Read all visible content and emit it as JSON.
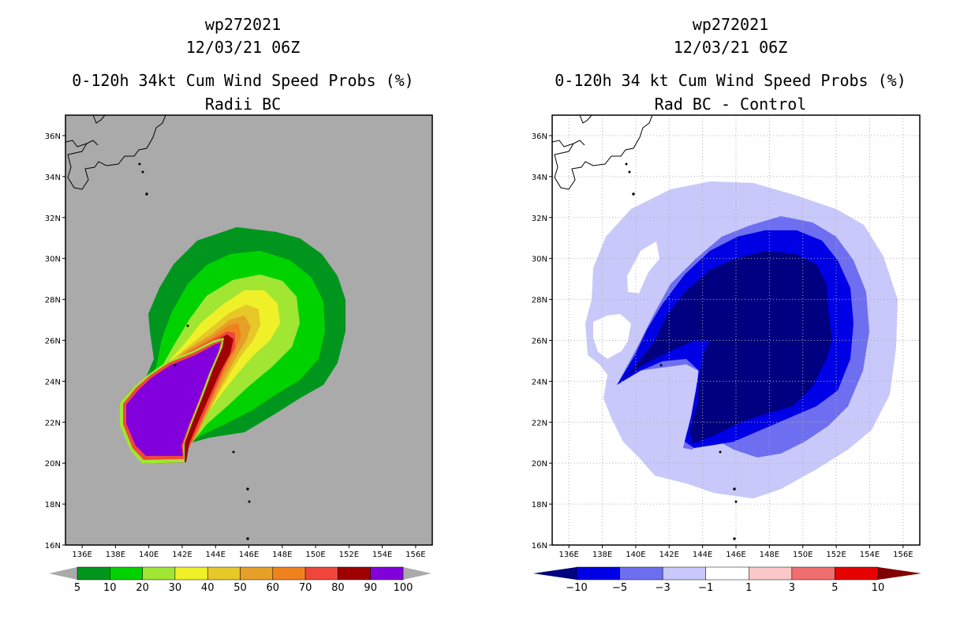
{
  "chart_data": [
    {
      "type": "filled-contour map",
      "title_lines": [
        "wp272021",
        "12/03/21 06Z",
        "0-120h 34kt Cum Wind Speed Probs (%)",
        "Radii BC"
      ],
      "x_ticks": [
        "136E",
        "138E",
        "140E",
        "142E",
        "144E",
        "146E",
        "148E",
        "150E",
        "152E",
        "154E",
        "156E"
      ],
      "y_ticks": [
        "16N",
        "18N",
        "20N",
        "22N",
        "24N",
        "26N",
        "28N",
        "30N",
        "32N",
        "34N",
        "36N"
      ],
      "xlim": [
        135,
        157
      ],
      "ylim": [
        16,
        37
      ],
      "colorbar_labels": [
        "5",
        "10",
        "20",
        "30",
        "40",
        "50",
        "60",
        "70",
        "80",
        "90",
        "100"
      ],
      "colorbar_colors": [
        "#00961e",
        "#00d200",
        "#a0e632",
        "#f0f028",
        "#e6c828",
        "#e6a028",
        "#f0821e",
        "#f0463c",
        "#a00000",
        "#8200dc"
      ],
      "colorbar_extend_colors": [
        "#aaaaaa",
        "#aaaaaa"
      ],
      "background_color": "#aaaaaa",
      "gridlines": false,
      "levels": [
        5,
        10,
        20,
        30,
        40,
        50,
        60,
        70,
        80,
        90
      ]
    },
    {
      "type": "filled-contour map",
      "title_lines": [
        "wp272021",
        "12/03/21 06Z",
        "0-120h 34 kt Cum Wind Speed Probs (%)",
        "Rad BC - Control"
      ],
      "x_ticks": [
        "136E",
        "138E",
        "140E",
        "142E",
        "144E",
        "146E",
        "148E",
        "150E",
        "152E",
        "154E",
        "156E"
      ],
      "y_ticks": [
        "16N",
        "18N",
        "20N",
        "22N",
        "24N",
        "26N",
        "28N",
        "30N",
        "32N",
        "34N",
        "36N"
      ],
      "xlim": [
        135,
        157
      ],
      "ylim": [
        16,
        37
      ],
      "colorbar_labels": [
        "-10",
        "-5",
        "-3",
        "-1",
        "1",
        "3",
        "5",
        "10"
      ],
      "colorbar_colors": [
        "#0000e6",
        "#6e6ef0",
        "#c8c8fa",
        "#ffffff",
        "#fac8c8",
        "#f06e6e",
        "#e60000"
      ],
      "colorbar_extend_colors": [
        "#000080",
        "#800000"
      ],
      "background_color": "#ffffff",
      "gridlines": true,
      "levels": [
        -10,
        -5,
        -3,
        -1
      ]
    }
  ]
}
